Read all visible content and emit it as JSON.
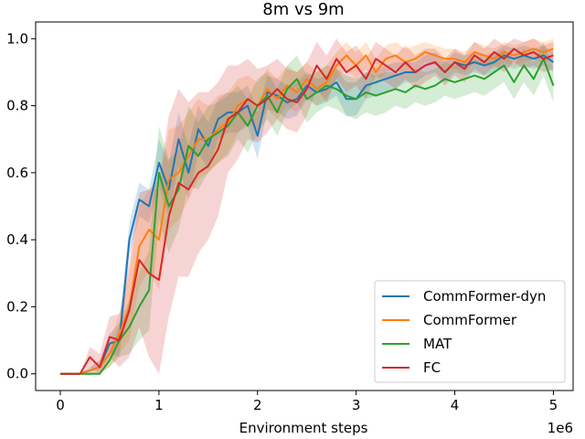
{
  "chart_data": {
    "type": "line",
    "title": "8m vs 9m",
    "xlabel": "Environment steps",
    "ylabel": "",
    "x_offset_label": "1e6",
    "xlim": [
      -0.25,
      5.2
    ],
    "ylim": [
      -0.05,
      1.05
    ],
    "x_ticks": [
      0,
      1,
      2,
      3,
      4,
      5
    ],
    "x_tick_labels": [
      "0",
      "1",
      "2",
      "3",
      "4",
      "5"
    ],
    "y_ticks": [
      0.0,
      0.2,
      0.4,
      0.6,
      0.8,
      1.0
    ],
    "y_tick_labels": [
      "0.0",
      "0.2",
      "0.4",
      "0.6",
      "0.8",
      "1.0"
    ],
    "x": [
      0,
      0.1,
      0.2,
      0.3,
      0.4,
      0.5,
      0.6,
      0.7,
      0.8,
      0.9,
      1.0,
      1.1,
      1.2,
      1.3,
      1.4,
      1.5,
      1.6,
      1.7,
      1.8,
      1.9,
      2.0,
      2.1,
      2.2,
      2.3,
      2.4,
      2.5,
      2.6,
      2.7,
      2.8,
      2.9,
      3.0,
      3.1,
      3.2,
      3.3,
      3.4,
      3.5,
      3.6,
      3.7,
      3.8,
      3.9,
      4.0,
      4.1,
      4.2,
      4.3,
      4.4,
      4.5,
      4.6,
      4.7,
      4.8,
      4.9,
      5.0
    ],
    "legend_position": "lower-right",
    "grid": false,
    "shaded_band": "variability across runs",
    "series": [
      {
        "name": "CommFormer-dyn",
        "color": "#1f77b4",
        "values": [
          0,
          0,
          0,
          0.01,
          0.02,
          0.09,
          0.1,
          0.4,
          0.52,
          0.5,
          0.63,
          0.55,
          0.7,
          0.6,
          0.73,
          0.68,
          0.76,
          0.78,
          0.78,
          0.8,
          0.71,
          0.84,
          0.83,
          0.81,
          0.82,
          0.86,
          0.84,
          0.85,
          0.87,
          0.82,
          0.82,
          0.86,
          0.87,
          0.88,
          0.89,
          0.9,
          0.9,
          0.92,
          0.93,
          0.9,
          0.93,
          0.92,
          0.93,
          0.92,
          0.93,
          0.95,
          0.94,
          0.95,
          0.94,
          0.95,
          0.93
        ],
        "band": [
          0,
          0,
          0,
          0.01,
          0.02,
          0.03,
          0.05,
          0.05,
          0.05,
          0.05,
          0.07,
          0.08,
          0.08,
          0.08,
          0.07,
          0.07,
          0.06,
          0.06,
          0.06,
          0.06,
          0.07,
          0.05,
          0.05,
          0.05,
          0.05,
          0.04,
          0.04,
          0.04,
          0.04,
          0.05,
          0.05,
          0.04,
          0.04,
          0.04,
          0.04,
          0.03,
          0.03,
          0.03,
          0.03,
          0.03,
          0.03,
          0.03,
          0.03,
          0.03,
          0.03,
          0.03,
          0.03,
          0.03,
          0.03,
          0.03,
          0.03
        ]
      },
      {
        "name": "CommFormer",
        "color": "#ff7f0e",
        "values": [
          0,
          0,
          0,
          0.01,
          0.02,
          0.06,
          0.12,
          0.2,
          0.38,
          0.43,
          0.4,
          0.58,
          0.6,
          0.65,
          0.7,
          0.7,
          0.73,
          0.75,
          0.8,
          0.82,
          0.8,
          0.85,
          0.82,
          0.86,
          0.84,
          0.88,
          0.85,
          0.87,
          0.92,
          0.95,
          0.92,
          0.95,
          0.9,
          0.94,
          0.95,
          0.93,
          0.94,
          0.96,
          0.95,
          0.94,
          0.94,
          0.93,
          0.96,
          0.95,
          0.94,
          0.96,
          0.95,
          0.96,
          0.97,
          0.96,
          0.97
        ],
        "band": [
          0,
          0,
          0,
          0.01,
          0.02,
          0.04,
          0.06,
          0.1,
          0.12,
          0.12,
          0.15,
          0.15,
          0.14,
          0.13,
          0.12,
          0.1,
          0.1,
          0.09,
          0.08,
          0.07,
          0.07,
          0.06,
          0.06,
          0.06,
          0.06,
          0.05,
          0.05,
          0.05,
          0.04,
          0.04,
          0.04,
          0.04,
          0.04,
          0.04,
          0.04,
          0.04,
          0.04,
          0.03,
          0.03,
          0.03,
          0.03,
          0.03,
          0.03,
          0.03,
          0.03,
          0.03,
          0.03,
          0.03,
          0.03,
          0.03,
          0.03
        ]
      },
      {
        "name": "MAT",
        "color": "#2ca02c",
        "values": [
          0,
          0,
          0,
          0,
          0,
          0.04,
          0.1,
          0.14,
          0.2,
          0.25,
          0.6,
          0.5,
          0.55,
          0.68,
          0.65,
          0.7,
          0.72,
          0.74,
          0.78,
          0.74,
          0.8,
          0.83,
          0.78,
          0.85,
          0.88,
          0.82,
          0.84,
          0.86,
          0.85,
          0.83,
          0.82,
          0.84,
          0.83,
          0.84,
          0.85,
          0.84,
          0.86,
          0.85,
          0.86,
          0.88,
          0.87,
          0.88,
          0.89,
          0.88,
          0.9,
          0.92,
          0.87,
          0.92,
          0.88,
          0.94,
          0.86
        ],
        "band": [
          0,
          0,
          0,
          0,
          0,
          0.02,
          0.05,
          0.08,
          0.1,
          0.12,
          0.14,
          0.14,
          0.12,
          0.12,
          0.1,
          0.1,
          0.09,
          0.09,
          0.08,
          0.08,
          0.08,
          0.07,
          0.07,
          0.07,
          0.07,
          0.07,
          0.06,
          0.06,
          0.06,
          0.06,
          0.06,
          0.06,
          0.06,
          0.06,
          0.05,
          0.05,
          0.05,
          0.05,
          0.05,
          0.05,
          0.05,
          0.05,
          0.05,
          0.05,
          0.05,
          0.05,
          0.05,
          0.05,
          0.05,
          0.05,
          0.05
        ]
      },
      {
        "name": "FC",
        "color": "#d62728",
        "values": [
          0,
          0,
          0,
          0.05,
          0.02,
          0.11,
          0.1,
          0.19,
          0.34,
          0.3,
          0.28,
          0.47,
          0.57,
          0.55,
          0.6,
          0.62,
          0.67,
          0.76,
          0.78,
          0.82,
          0.8,
          0.82,
          0.85,
          0.82,
          0.81,
          0.85,
          0.92,
          0.88,
          0.94,
          0.9,
          0.92,
          0.88,
          0.94,
          0.92,
          0.9,
          0.93,
          0.9,
          0.92,
          0.93,
          0.9,
          0.93,
          0.91,
          0.95,
          0.93,
          0.96,
          0.94,
          0.97,
          0.95,
          0.96,
          0.94,
          0.95
        ],
        "band": [
          0,
          0,
          0,
          0.03,
          0.04,
          0.06,
          0.08,
          0.14,
          0.2,
          0.25,
          0.3,
          0.3,
          0.28,
          0.26,
          0.24,
          0.22,
          0.2,
          0.16,
          0.14,
          0.12,
          0.11,
          0.1,
          0.09,
          0.09,
          0.09,
          0.08,
          0.07,
          0.07,
          0.06,
          0.06,
          0.06,
          0.06,
          0.05,
          0.05,
          0.05,
          0.05,
          0.05,
          0.05,
          0.04,
          0.04,
          0.04,
          0.04,
          0.04,
          0.04,
          0.04,
          0.04,
          0.04,
          0.04,
          0.04,
          0.04,
          0.04
        ]
      }
    ]
  }
}
